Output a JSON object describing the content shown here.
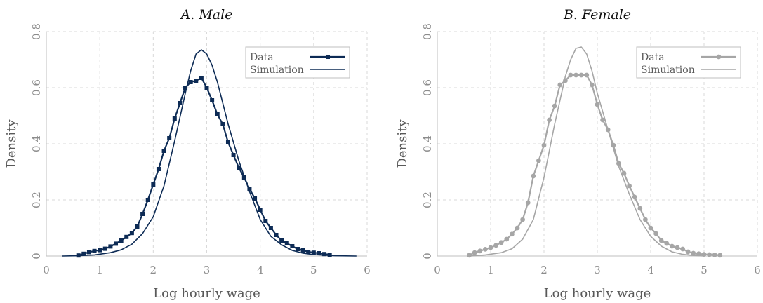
{
  "chart_data": [
    {
      "type": "line",
      "title": "A. Male",
      "xlabel": "Log hourly wage",
      "ylabel": "Density",
      "xlim": [
        0,
        6
      ],
      "ylim": [
        0,
        0.8
      ],
      "xticks": [
        "0",
        "1",
        "2",
        "3",
        "4",
        "5",
        "6"
      ],
      "yticks": [
        "0",
        "0.2",
        "0.4",
        "0.6",
        "0.8"
      ],
      "grid": true,
      "legend": "top-right",
      "colors": {
        "data": "#0d2b55",
        "simulation": "#0d2b55"
      },
      "series": [
        {
          "name": "Data",
          "marker": "square",
          "x": [
            0.6,
            0.7,
            0.8,
            0.9,
            1.0,
            1.1,
            1.2,
            1.3,
            1.4,
            1.5,
            1.6,
            1.7,
            1.8,
            1.9,
            2.0,
            2.1,
            2.2,
            2.3,
            2.4,
            2.5,
            2.6,
            2.7,
            2.8,
            2.9,
            3.0,
            3.1,
            3.2,
            3.3,
            3.4,
            3.5,
            3.6,
            3.7,
            3.8,
            3.9,
            4.0,
            4.1,
            4.2,
            4.3,
            4.4,
            4.5,
            4.6,
            4.7,
            4.8,
            4.9,
            5.0,
            5.1,
            5.2,
            5.3
          ],
          "y": [
            0.002,
            0.008,
            0.014,
            0.018,
            0.021,
            0.026,
            0.034,
            0.044,
            0.055,
            0.068,
            0.082,
            0.105,
            0.15,
            0.2,
            0.255,
            0.31,
            0.375,
            0.42,
            0.49,
            0.545,
            0.6,
            0.62,
            0.625,
            0.635,
            0.6,
            0.555,
            0.505,
            0.47,
            0.405,
            0.36,
            0.315,
            0.28,
            0.24,
            0.205,
            0.165,
            0.125,
            0.1,
            0.075,
            0.055,
            0.045,
            0.035,
            0.025,
            0.02,
            0.015,
            0.012,
            0.01,
            0.007,
            0.005
          ]
        },
        {
          "name": "Simulation",
          "marker": "none",
          "x": [
            0.3,
            0.6,
            0.9,
            1.2,
            1.4,
            1.6,
            1.8,
            2.0,
            2.2,
            2.4,
            2.6,
            2.7,
            2.8,
            2.9,
            3.0,
            3.1,
            3.2,
            3.4,
            3.6,
            3.8,
            4.0,
            4.2,
            4.4,
            4.6,
            4.8,
            5.0,
            5.4,
            5.8
          ],
          "y": [
            0.0,
            0.001,
            0.004,
            0.012,
            0.022,
            0.042,
            0.08,
            0.14,
            0.25,
            0.41,
            0.58,
            0.66,
            0.72,
            0.735,
            0.72,
            0.68,
            0.62,
            0.47,
            0.34,
            0.23,
            0.13,
            0.07,
            0.04,
            0.02,
            0.01,
            0.005,
            0.001,
            0.0
          ]
        }
      ]
    },
    {
      "type": "line",
      "title": "B. Female",
      "xlabel": "Log hourly wage",
      "ylabel": "Density",
      "xlim": [
        0,
        6
      ],
      "ylim": [
        0,
        0.8
      ],
      "xticks": [
        "0",
        "1",
        "2",
        "3",
        "4",
        "5",
        "6"
      ],
      "yticks": [
        "0",
        "0.2",
        "0.4",
        "0.6",
        "0.8"
      ],
      "grid": true,
      "legend": "top-right",
      "colors": {
        "data": "#a6a6a6",
        "simulation": "#a6a6a6"
      },
      "series": [
        {
          "name": "Data",
          "marker": "circle",
          "x": [
            0.6,
            0.7,
            0.8,
            0.9,
            1.0,
            1.1,
            1.2,
            1.3,
            1.4,
            1.5,
            1.6,
            1.7,
            1.8,
            1.9,
            2.0,
            2.1,
            2.2,
            2.3,
            2.4,
            2.5,
            2.6,
            2.7,
            2.8,
            2.9,
            3.0,
            3.1,
            3.2,
            3.3,
            3.4,
            3.5,
            3.6,
            3.7,
            3.8,
            3.9,
            4.0,
            4.1,
            4.2,
            4.3,
            4.4,
            4.5,
            4.6,
            4.7,
            4.8,
            4.9,
            5.0,
            5.1,
            5.2,
            5.3
          ],
          "y": [
            0.003,
            0.012,
            0.018,
            0.024,
            0.03,
            0.038,
            0.048,
            0.06,
            0.078,
            0.1,
            0.13,
            0.19,
            0.285,
            0.34,
            0.395,
            0.485,
            0.535,
            0.61,
            0.625,
            0.645,
            0.645,
            0.645,
            0.645,
            0.61,
            0.54,
            0.485,
            0.45,
            0.395,
            0.33,
            0.295,
            0.25,
            0.21,
            0.17,
            0.13,
            0.1,
            0.08,
            0.055,
            0.045,
            0.035,
            0.03,
            0.025,
            0.015,
            0.01,
            0.008,
            0.006,
            0.005,
            0.004,
            0.003
          ]
        },
        {
          "name": "Simulation",
          "marker": "none",
          "x": [
            0.6,
            0.9,
            1.2,
            1.4,
            1.6,
            1.8,
            2.0,
            2.2,
            2.4,
            2.5,
            2.6,
            2.7,
            2.8,
            2.9,
            3.0,
            3.2,
            3.4,
            3.6,
            3.8,
            4.0,
            4.2,
            4.4,
            4.6,
            4.8,
            5.0
          ],
          "y": [
            0.0,
            0.004,
            0.012,
            0.026,
            0.06,
            0.13,
            0.28,
            0.47,
            0.64,
            0.7,
            0.74,
            0.745,
            0.72,
            0.66,
            0.58,
            0.45,
            0.32,
            0.22,
            0.13,
            0.07,
            0.035,
            0.015,
            0.006,
            0.002,
            0.0
          ]
        }
      ]
    }
  ]
}
